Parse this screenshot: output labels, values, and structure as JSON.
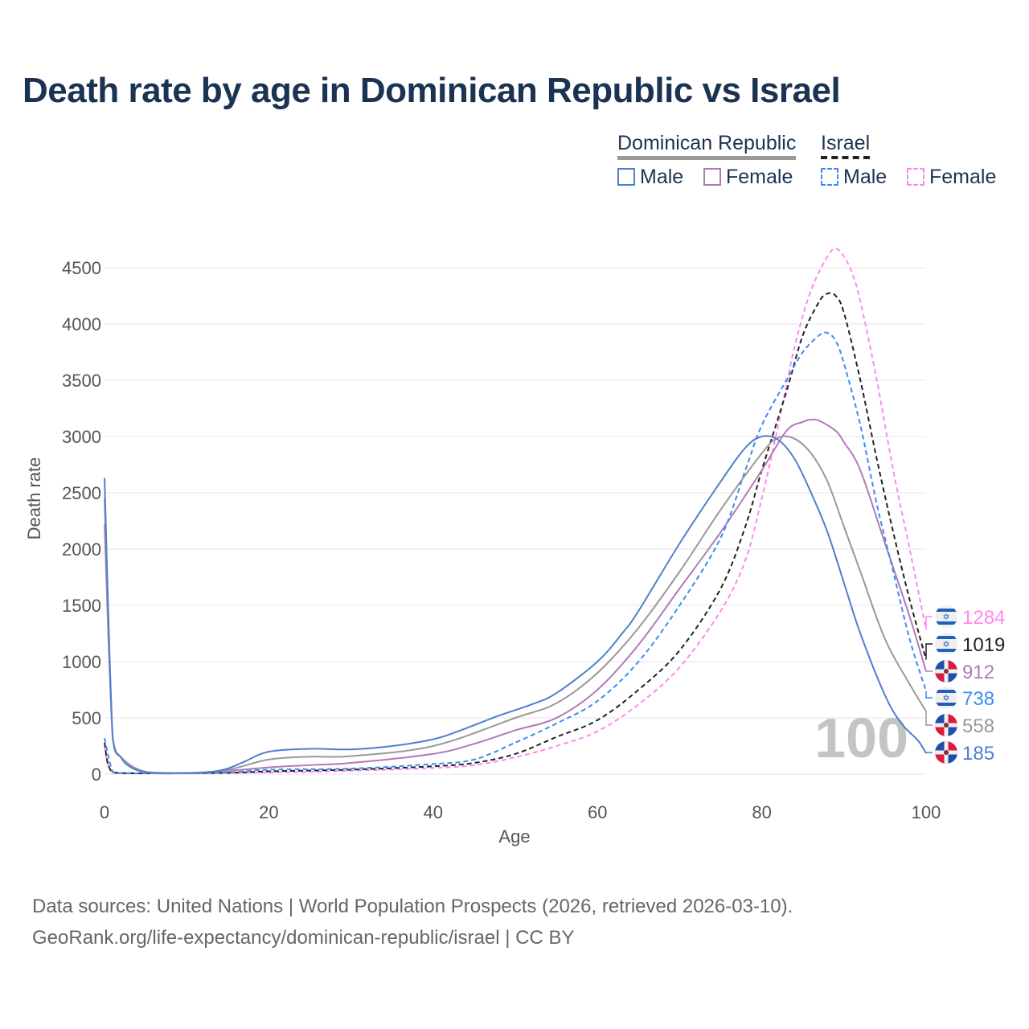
{
  "title": "Death rate by age in Dominican Republic vs Israel",
  "legend": {
    "groups": [
      {
        "name": "Dominican Republic",
        "color": "#999999"
      },
      {
        "name": "Israel",
        "color": "#222222"
      }
    ],
    "items": [
      {
        "label": "Male",
        "color": "#4f7fcf",
        "dashed": false
      },
      {
        "label": "Female",
        "color": "#b07ab8",
        "dashed": false
      },
      {
        "label": "Male",
        "color": "#3d8bf2",
        "dashed": true
      },
      {
        "label": "Female",
        "color": "#ff88ee",
        "dashed": true
      }
    ]
  },
  "watermark": "100",
  "source_line1": "Data sources: United Nations | World Population Prospects (2026, retrieved 2026-03-10).",
  "source_line2": "GeoRank.org/life-expectancy/dominican-republic/israel | CC BY",
  "chart_data": {
    "type": "line",
    "title": "Death rate by age in Dominican Republic vs Israel",
    "xlabel": "Age",
    "ylabel": "Death rate",
    "xlim": [
      0,
      100
    ],
    "ylim": [
      0,
      4500
    ],
    "xticks": [
      0,
      20,
      40,
      60,
      80,
      100
    ],
    "yticks": [
      0,
      500,
      1000,
      1500,
      2000,
      2500,
      3000,
      3500,
      4000,
      4500
    ],
    "grid": true,
    "series": [
      {
        "name": "Israel Female",
        "country": "Israel",
        "color": "#ff88ee",
        "dashed": true,
        "end_label": "1284",
        "flag": "israel",
        "points": [
          [
            0,
            250
          ],
          [
            1,
            12
          ],
          [
            5,
            6
          ],
          [
            20,
            15
          ],
          [
            30,
            30
          ],
          [
            40,
            55
          ],
          [
            45,
            80
          ],
          [
            50,
            150
          ],
          [
            55,
            250
          ],
          [
            60,
            380
          ],
          [
            65,
            620
          ],
          [
            70,
            950
          ],
          [
            75,
            1450
          ],
          [
            78,
            1900
          ],
          [
            80,
            2450
          ],
          [
            82,
            3100
          ],
          [
            84,
            3800
          ],
          [
            86,
            4300
          ],
          [
            88,
            4600
          ],
          [
            89,
            4670
          ],
          [
            90,
            4600
          ],
          [
            91,
            4450
          ],
          [
            92,
            4200
          ],
          [
            94,
            3500
          ],
          [
            96,
            2700
          ],
          [
            98,
            2000
          ],
          [
            100,
            1284
          ]
        ]
      },
      {
        "name": "Israel",
        "country": "Israel",
        "color": "#222222",
        "dashed": true,
        "end_label": "1019",
        "flag": "israel",
        "points": [
          [
            0,
            280
          ],
          [
            1,
            15
          ],
          [
            5,
            8
          ],
          [
            15,
            12
          ],
          [
            20,
            25
          ],
          [
            30,
            40
          ],
          [
            40,
            70
          ],
          [
            45,
            100
          ],
          [
            50,
            180
          ],
          [
            55,
            330
          ],
          [
            60,
            480
          ],
          [
            65,
            750
          ],
          [
            70,
            1100
          ],
          [
            75,
            1650
          ],
          [
            78,
            2200
          ],
          [
            80,
            2700
          ],
          [
            83,
            3400
          ],
          [
            85,
            3900
          ],
          [
            87,
            4200
          ],
          [
            88,
            4270
          ],
          [
            89,
            4250
          ],
          [
            90,
            4100
          ],
          [
            92,
            3500
          ],
          [
            94,
            2800
          ],
          [
            96,
            2150
          ],
          [
            98,
            1550
          ],
          [
            100,
            1019
          ]
        ]
      },
      {
        "name": "Dominican Republic Female",
        "country": "Dominican Republic",
        "color": "#b07ab8",
        "dashed": false,
        "end_label": "912",
        "flag": "dominican-republic",
        "points": [
          [
            0,
            2220
          ],
          [
            1,
            320
          ],
          [
            2,
            150
          ],
          [
            5,
            20
          ],
          [
            10,
            10
          ],
          [
            15,
            30
          ],
          [
            20,
            60
          ],
          [
            25,
            80
          ],
          [
            30,
            100
          ],
          [
            40,
            180
          ],
          [
            45,
            270
          ],
          [
            50,
            390
          ],
          [
            55,
            500
          ],
          [
            60,
            750
          ],
          [
            65,
            1150
          ],
          [
            70,
            1650
          ],
          [
            75,
            2150
          ],
          [
            80,
            2700
          ],
          [
            83,
            3050
          ],
          [
            85,
            3130
          ],
          [
            86,
            3150
          ],
          [
            87,
            3140
          ],
          [
            89,
            3050
          ],
          [
            90,
            2950
          ],
          [
            92,
            2700
          ],
          [
            95,
            2050
          ],
          [
            98,
            1400
          ],
          [
            100,
            912
          ]
        ]
      },
      {
        "name": "Israel Male",
        "country": "Israel",
        "color": "#3d8bf2",
        "dashed": true,
        "end_label": "738",
        "flag": "israel",
        "points": [
          [
            0,
            320
          ],
          [
            1,
            20
          ],
          [
            2,
            10
          ],
          [
            5,
            8
          ],
          [
            10,
            8
          ],
          [
            15,
            15
          ],
          [
            20,
            40
          ],
          [
            30,
            50
          ],
          [
            40,
            90
          ],
          [
            45,
            130
          ],
          [
            50,
            280
          ],
          [
            55,
            450
          ],
          [
            60,
            650
          ],
          [
            65,
            1000
          ],
          [
            70,
            1500
          ],
          [
            75,
            2100
          ],
          [
            78,
            2700
          ],
          [
            80,
            3100
          ],
          [
            83,
            3500
          ],
          [
            85,
            3750
          ],
          [
            87,
            3900
          ],
          [
            88,
            3920
          ],
          [
            89,
            3850
          ],
          [
            90,
            3650
          ],
          [
            92,
            3100
          ],
          [
            94,
            2400
          ],
          [
            96,
            1800
          ],
          [
            98,
            1200
          ],
          [
            100,
            738
          ]
        ]
      },
      {
        "name": "Dominican Republic",
        "country": "Dominican Republic",
        "color": "#999999",
        "dashed": false,
        "end_label": "558",
        "flag": "dominican-republic",
        "points": [
          [
            0,
            2450
          ],
          [
            1,
            320
          ],
          [
            2,
            150
          ],
          [
            5,
            20
          ],
          [
            10,
            10
          ],
          [
            15,
            40
          ],
          [
            20,
            130
          ],
          [
            25,
            155
          ],
          [
            30,
            160
          ],
          [
            40,
            250
          ],
          [
            50,
            500
          ],
          [
            55,
            630
          ],
          [
            60,
            900
          ],
          [
            65,
            1300
          ],
          [
            70,
            1800
          ],
          [
            75,
            2350
          ],
          [
            80,
            2850
          ],
          [
            82,
            2990
          ],
          [
            84,
            2980
          ],
          [
            86,
            2850
          ],
          [
            88,
            2600
          ],
          [
            90,
            2200
          ],
          [
            92,
            1800
          ],
          [
            95,
            1200
          ],
          [
            98,
            800
          ],
          [
            100,
            558
          ]
        ]
      },
      {
        "name": "Dominican Republic Male",
        "country": "Dominican Republic",
        "color": "#4f7fcf",
        "dashed": false,
        "end_label": "185",
        "flag": "dominican-republic",
        "points": [
          [
            0,
            2630
          ],
          [
            1,
            320
          ],
          [
            2,
            150
          ],
          [
            3,
            70
          ],
          [
            5,
            20
          ],
          [
            10,
            10
          ],
          [
            13,
            20
          ],
          [
            15,
            50
          ],
          [
            17,
            110
          ],
          [
            20,
            200
          ],
          [
            25,
            225
          ],
          [
            30,
            220
          ],
          [
            35,
            250
          ],
          [
            40,
            310
          ],
          [
            43,
            380
          ],
          [
            48,
            520
          ],
          [
            52,
            620
          ],
          [
            55,
            720
          ],
          [
            60,
            1000
          ],
          [
            63,
            1250
          ],
          [
            65,
            1450
          ],
          [
            70,
            2050
          ],
          [
            75,
            2600
          ],
          [
            78,
            2900
          ],
          [
            80,
            3000
          ],
          [
            82,
            2970
          ],
          [
            84,
            2800
          ],
          [
            86,
            2500
          ],
          [
            88,
            2150
          ],
          [
            90,
            1700
          ],
          [
            92,
            1250
          ],
          [
            95,
            700
          ],
          [
            97,
            450
          ],
          [
            99,
            300
          ],
          [
            100,
            185
          ]
        ]
      }
    ]
  }
}
